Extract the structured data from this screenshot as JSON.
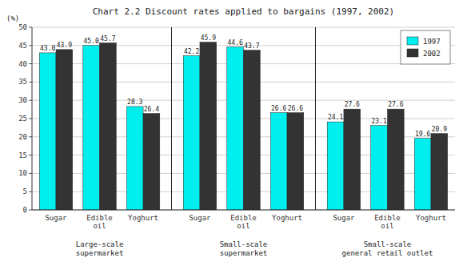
{
  "chart_data": {
    "type": "bar",
    "title": "Chart 2.2 Discount rates applied to bargains (1997, 2002)",
    "y_label": "(%)",
    "categories": [
      "Sugar",
      "Edible\noil",
      "Yoghurt",
      "Sugar",
      "Edible\noil",
      "Yoghurt",
      "Sugar",
      "Edible\noil",
      "Yoghurt"
    ],
    "group_labels": [
      "Large-scale\nsupermarket",
      "Small-scale\nsupermarket",
      "Small-scale\ngeneral retail outlet"
    ],
    "series": [
      {
        "name": "1997",
        "color": "#00EEEE",
        "values": [
          43.0,
          45.0,
          28.3,
          42.2,
          44.6,
          26.6,
          24.1,
          23.1,
          19.6
        ],
        "value_labels": [
          "43.0",
          "45.0",
          "28.3",
          "42.2",
          "44.6",
          "26.6",
          "24.1",
          "23.1",
          "19.6"
        ]
      },
      {
        "name": "2002",
        "color": "#333333",
        "values": [
          43.9,
          45.7,
          26.4,
          45.9,
          43.7,
          26.6,
          27.6,
          27.6,
          20.9
        ],
        "value_labels": [
          "43.9",
          "45.7",
          "26.4",
          "45.9",
          "43.7",
          "26.6",
          "27.6",
          "27.6",
          "20.9"
        ]
      }
    ],
    "ylim": [
      0,
      50
    ],
    "yticks": [
      0,
      5,
      10,
      15,
      20,
      25,
      30,
      35,
      40,
      45,
      50
    ],
    "grid": true,
    "legend": "upper right",
    "data_labels": true
  }
}
